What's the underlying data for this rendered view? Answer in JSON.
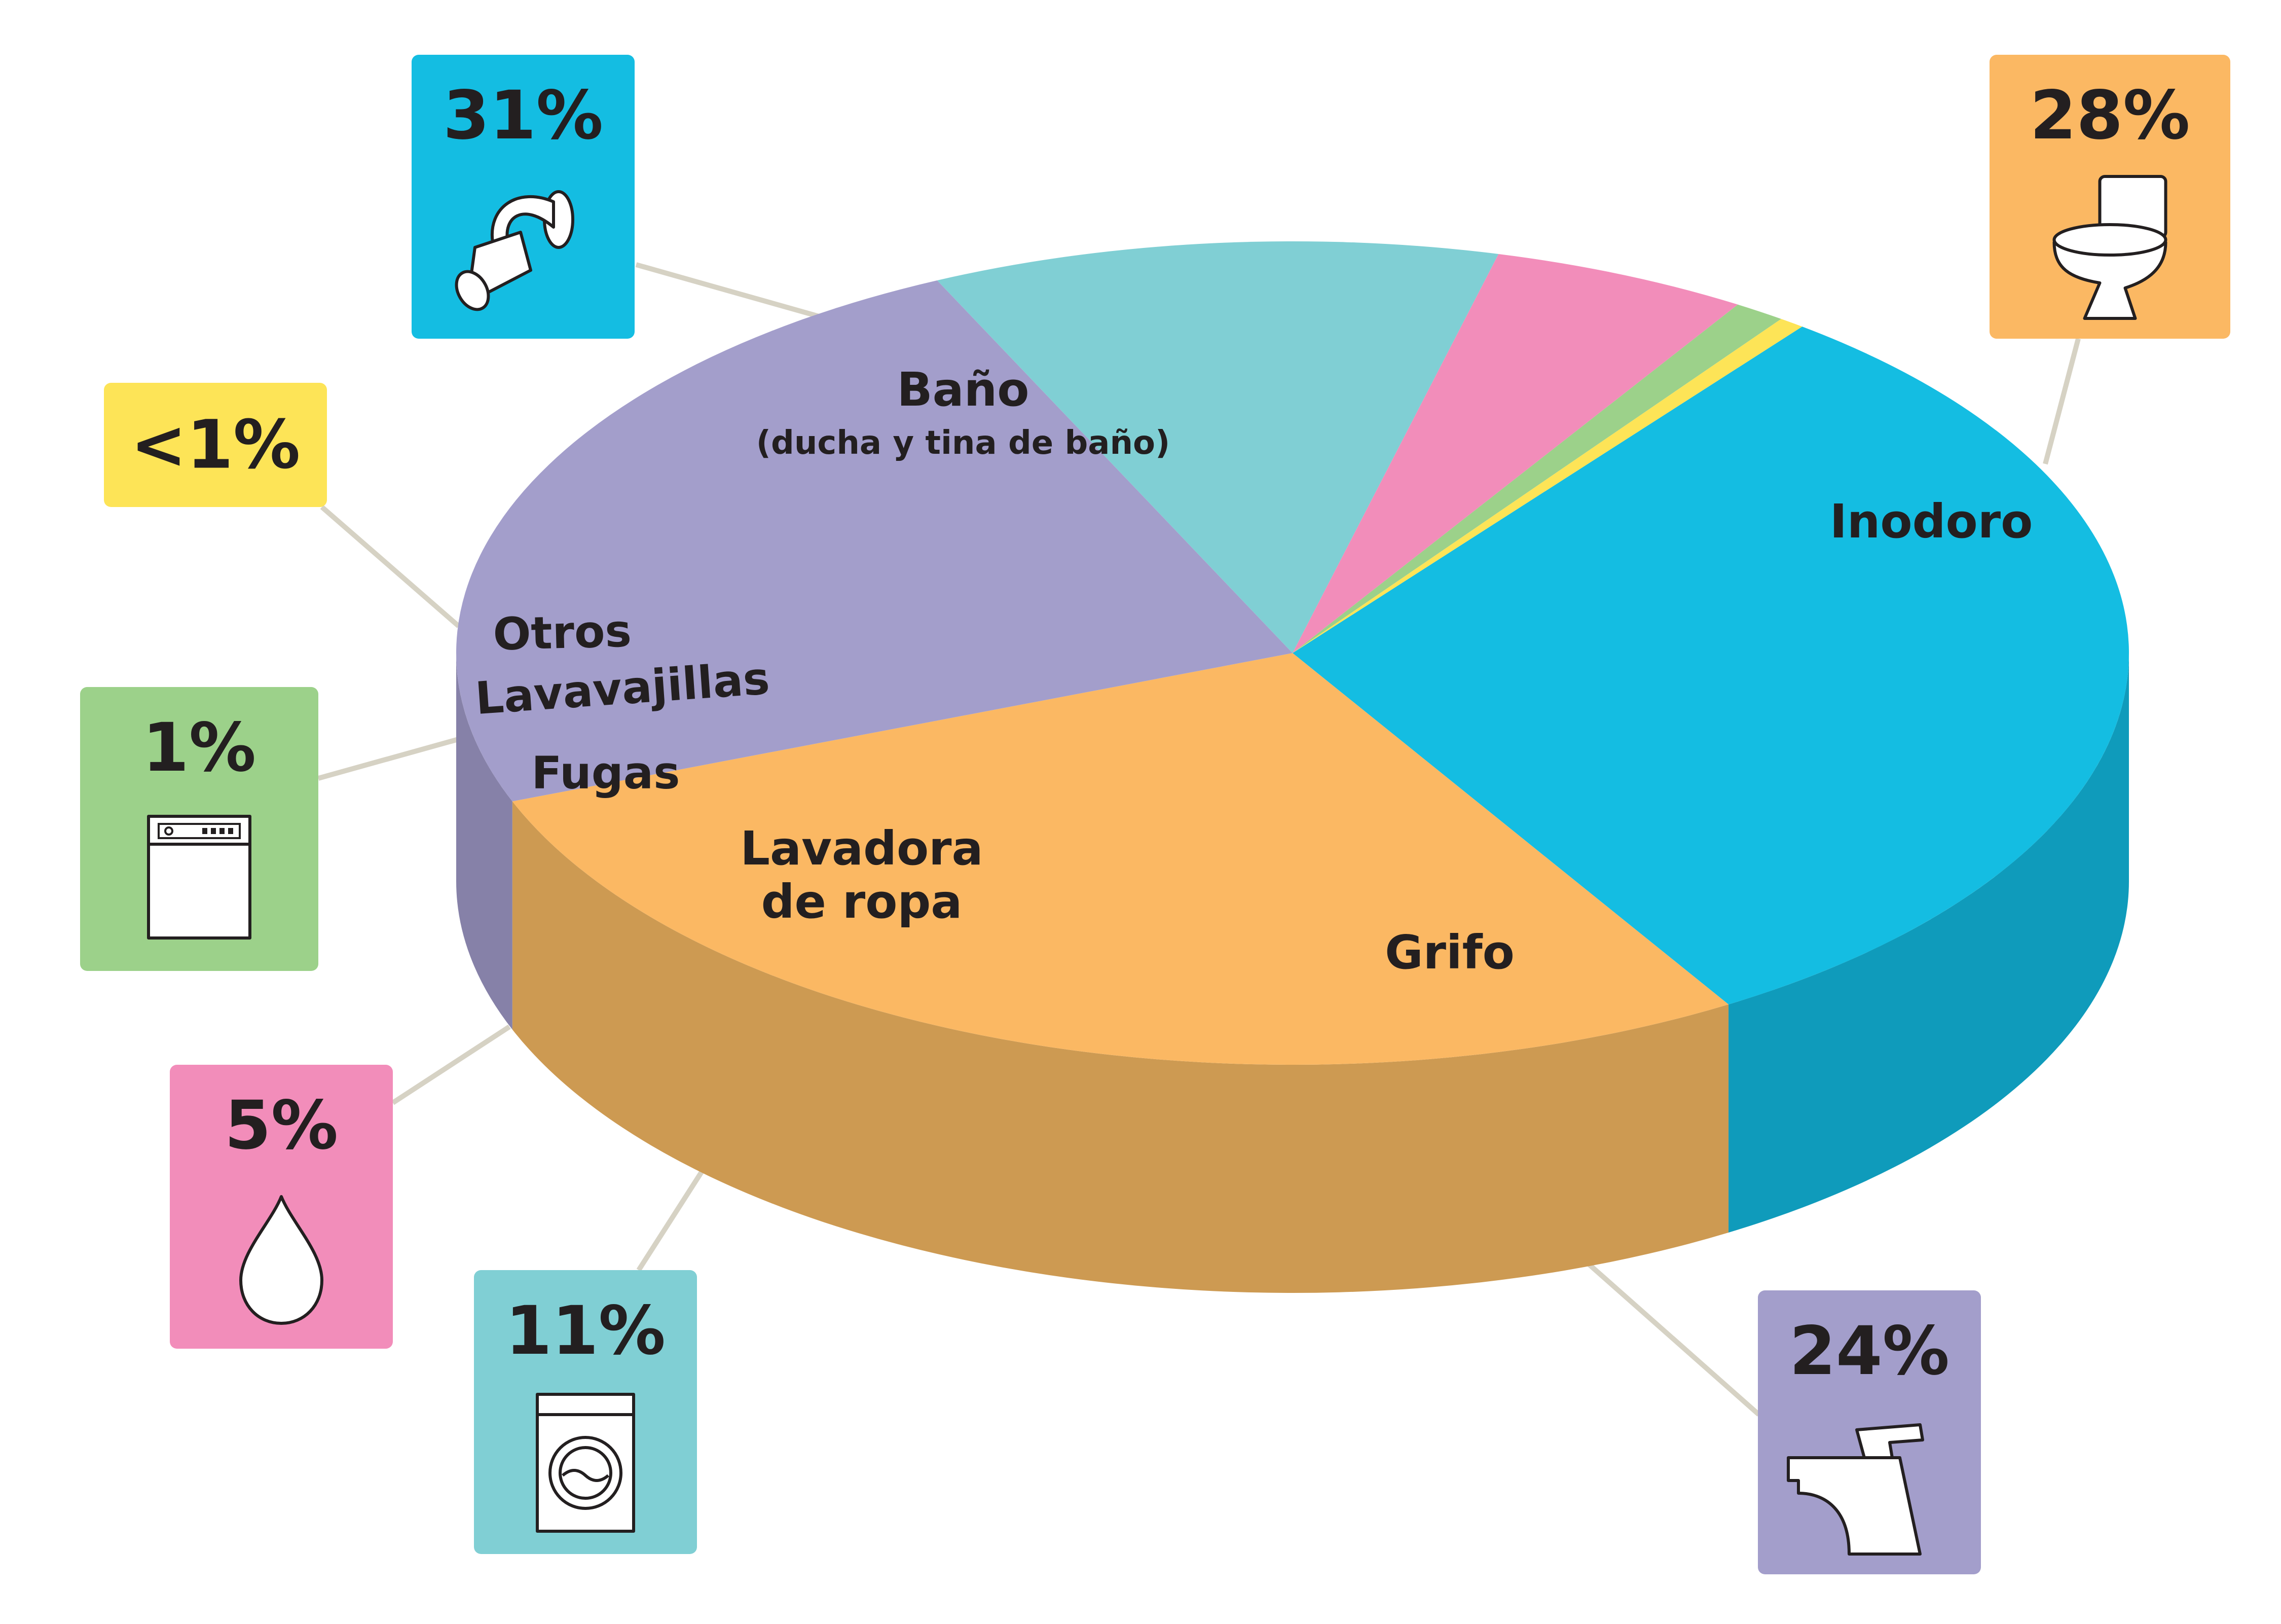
{
  "chart_data": {
    "type": "pie",
    "style": "3d-exploded-callouts",
    "slices": [
      {
        "id": "bano",
        "label": "Baño",
        "sublabel": "(ducha y tina de baño)",
        "value": 31,
        "value_label": "31%",
        "color": "#14bde2",
        "side_color": "#0f9bbb",
        "icon": "shower-icon"
      },
      {
        "id": "inodoro",
        "label": "Inodoro",
        "sublabel": "",
        "value": 28,
        "value_label": "28%",
        "color": "#fbb863",
        "side_color": "#cd9a52",
        "icon": "toilet-icon"
      },
      {
        "id": "grifo",
        "label": "Grifo",
        "sublabel": "",
        "value": 24,
        "value_label": "24%",
        "color": "#a39ecb",
        "side_color": "#8681a8",
        "icon": "faucet-icon"
      },
      {
        "id": "lavadora",
        "label": "Lavadora de ropa",
        "label_lines": [
          "Lavadora",
          "de ropa"
        ],
        "sublabel": "",
        "value": 11,
        "value_label": "11%",
        "color": "#80cfd4",
        "side_color": "#65a9ae",
        "icon": "washing-machine-icon"
      },
      {
        "id": "fugas",
        "label": "Fugas",
        "sublabel": "",
        "value": 5,
        "value_label": "5%",
        "color": "#f28dba",
        "side_color": "#c8769a",
        "icon": "water-drop-icon"
      },
      {
        "id": "lavavajillas",
        "label": "Lavavajillas",
        "sublabel": "",
        "value": 1,
        "value_label": "1%",
        "color": "#9cd18a",
        "side_color": "#80ab71",
        "icon": "dishwasher-icon"
      },
      {
        "id": "otros",
        "label": "Otros",
        "sublabel": "",
        "value": 0.5,
        "value_label": "<1%",
        "color": "#fde457",
        "side_color": "#d2bd48",
        "icon": ""
      }
    ]
  },
  "colors": {
    "connector": "#d6d2c4",
    "text": "#231f20",
    "icon_fill": "#ffffff",
    "icon_stroke": "#231f20"
  }
}
